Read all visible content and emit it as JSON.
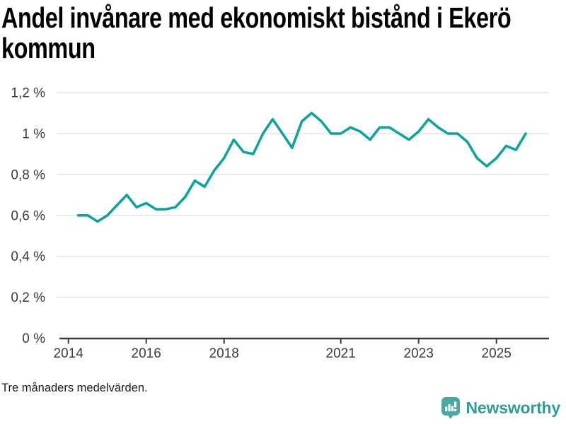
{
  "page": {
    "title_lines": [
      "Andel invånare med ekonomiskt bistånd i Ekerö",
      "kommun"
    ],
    "footnote": "Tre månaders medelvärden.",
    "background": "#ffffff"
  },
  "branding": {
    "logo_text": "Newsworthy",
    "logo_icon": "bar-chart-speech-bubble-icon",
    "logo_text_color": "#2f9c95",
    "logo_icon_color": "#4aa7a1"
  },
  "chart_data": {
    "type": "line",
    "title": "Andel invånare med ekonomiskt bistånd i Ekerö kommun",
    "note": "Tre månaders medelvärden.",
    "unit": "percent",
    "line_color": "#10a39b",
    "grid": true,
    "legend": "none",
    "ylim": [
      0,
      1.2
    ],
    "yticks": [
      {
        "value": 0,
        "label": "0 %"
      },
      {
        "value": 0.2,
        "label": "0,2 %"
      },
      {
        "value": 0.4,
        "label": "0,4 %"
      },
      {
        "value": 0.6,
        "label": "0,6 %"
      },
      {
        "value": 0.8,
        "label": "0,8 %"
      },
      {
        "value": 1.0,
        "label": "1 %"
      },
      {
        "value": 1.2,
        "label": "1,2 %"
      }
    ],
    "xticks": [
      {
        "year": 2014,
        "label": "2014"
      },
      {
        "year": 2016,
        "label": "2016"
      },
      {
        "year": 2018,
        "label": "2018"
      },
      {
        "year": 2021,
        "label": "2021"
      },
      {
        "year": 2023,
        "label": "2023"
      },
      {
        "year": 2025,
        "label": "2025"
      }
    ],
    "x": [
      "2014-Q2",
      "2014-Q3",
      "2014-Q4",
      "2015-Q1",
      "2015-Q2",
      "2015-Q3",
      "2015-Q4",
      "2016-Q1",
      "2016-Q2",
      "2016-Q3",
      "2016-Q4",
      "2017-Q1",
      "2017-Q2",
      "2017-Q3",
      "2017-Q4",
      "2018-Q1",
      "2018-Q2",
      "2018-Q3",
      "2018-Q4",
      "2019-Q1",
      "2019-Q2",
      "2019-Q3",
      "2019-Q4",
      "2020-Q1",
      "2020-Q2",
      "2020-Q3",
      "2020-Q4",
      "2021-Q1",
      "2021-Q2",
      "2021-Q3",
      "2021-Q4",
      "2022-Q1",
      "2022-Q2",
      "2022-Q3",
      "2022-Q4",
      "2023-Q1",
      "2023-Q2",
      "2023-Q3",
      "2023-Q4",
      "2024-Q1",
      "2024-Q2",
      "2024-Q3",
      "2024-Q4",
      "2025-Q1",
      "2025-Q2",
      "2025-Q3",
      "2025-Q4"
    ],
    "values": [
      0.6,
      0.6,
      0.57,
      0.6,
      0.65,
      0.7,
      0.64,
      0.66,
      0.63,
      0.63,
      0.64,
      0.69,
      0.77,
      0.74,
      0.82,
      0.88,
      0.97,
      0.91,
      0.9,
      1.0,
      1.07,
      1.0,
      0.93,
      1.06,
      1.1,
      1.06,
      1.0,
      1.0,
      1.03,
      1.01,
      0.97,
      1.03,
      1.03,
      1.0,
      0.97,
      1.01,
      1.07,
      1.03,
      1.0,
      1.0,
      0.96,
      0.88,
      0.84,
      0.88,
      0.94,
      0.92,
      1.0
    ]
  }
}
